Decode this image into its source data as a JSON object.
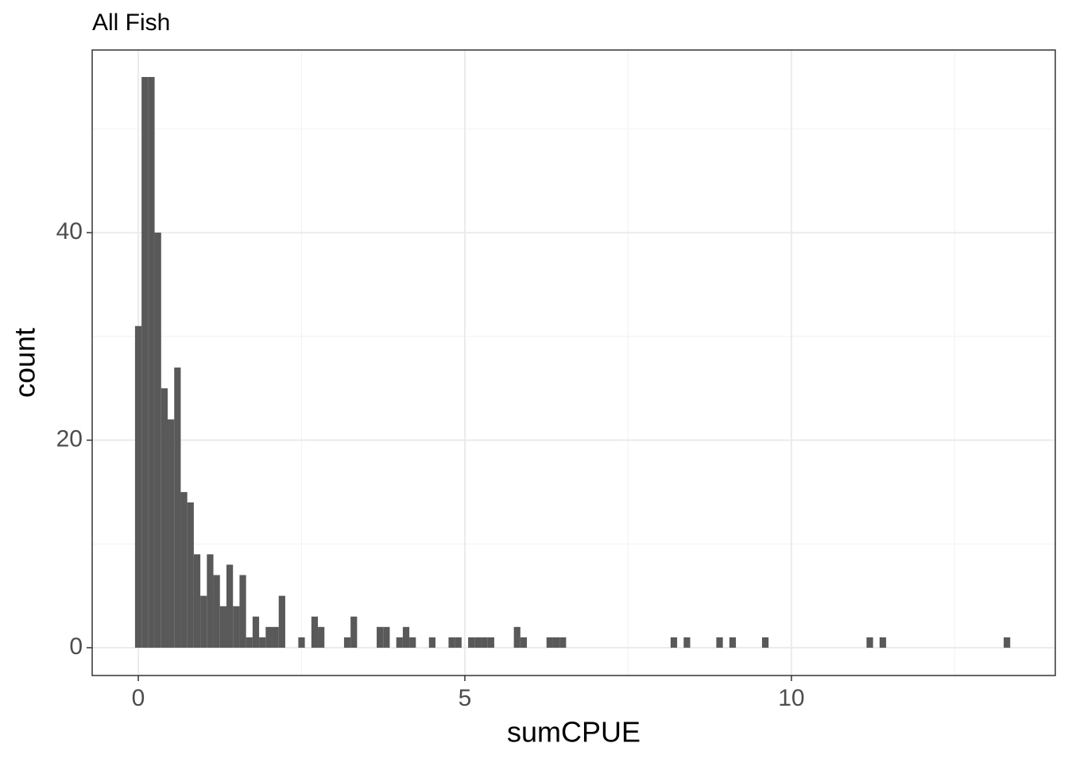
{
  "chart_data": {
    "type": "histogram",
    "title": "All Fish",
    "x_label": "sumCPUE",
    "y_label": "count",
    "color": "#595959",
    "bins": [
      -0.05,
      0.05,
      0.15,
      0.25,
      0.35,
      0.45,
      0.55,
      0.65,
      0.75,
      0.85,
      0.95,
      1.05,
      1.15,
      1.25,
      1.35,
      1.45,
      1.55,
      1.65,
      1.75,
      1.85,
      1.95,
      2.05,
      2.15,
      2.25,
      2.35,
      2.45,
      2.55,
      2.65,
      2.75,
      2.85,
      2.95,
      3.05,
      3.15,
      3.25,
      3.35,
      3.45,
      3.55,
      3.65,
      3.75,
      3.85,
      3.95,
      4.05,
      4.15,
      4.25,
      4.35,
      4.45,
      4.55,
      4.65,
      4.75,
      4.85,
      4.95,
      5.05,
      5.15,
      5.25,
      5.35,
      5.45,
      5.55,
      5.65,
      5.75,
      5.85,
      5.95,
      6.05,
      6.15,
      6.25,
      6.35,
      6.45,
      6.55,
      6.65,
      6.75,
      6.85,
      6.95,
      7.05,
      7.15,
      7.25,
      7.35,
      7.45,
      7.55,
      7.65,
      7.75,
      7.85,
      7.95,
      8.05,
      8.15,
      8.25,
      8.35,
      8.45,
      8.55,
      8.65,
      8.75,
      8.85,
      8.95,
      9.05,
      9.15,
      9.25,
      9.35,
      9.45,
      9.55,
      9.65,
      9.75,
      9.85,
      9.95,
      10.05,
      10.15,
      10.25,
      10.35,
      10.45,
      10.55,
      10.65,
      10.75,
      10.85,
      10.95,
      11.05,
      11.15,
      11.25,
      11.35,
      11.45,
      11.55,
      11.65,
      11.75,
      11.85,
      11.95,
      12.05,
      12.15,
      12.25,
      12.35,
      12.45,
      12.55,
      12.65,
      12.75,
      12.85,
      12.95,
      13.05,
      13.15,
      13.25,
      13.35
    ],
    "values": [
      31,
      55,
      55,
      40,
      25,
      22,
      27,
      15,
      14,
      9,
      5,
      9,
      7,
      4,
      8,
      4,
      7,
      1,
      3,
      1,
      2,
      2,
      5,
      0,
      0,
      1,
      0,
      3,
      2,
      0,
      0,
      0,
      1,
      3,
      0,
      0,
      0,
      2,
      2,
      0,
      1,
      2,
      1,
      0,
      0,
      1,
      0,
      0,
      1,
      1,
      0,
      1,
      1,
      1,
      1,
      0,
      0,
      0,
      2,
      1,
      0,
      0,
      0,
      1,
      1,
      1,
      0,
      0,
      0,
      0,
      0,
      0,
      0,
      0,
      0,
      0,
      0,
      0,
      0,
      0,
      0,
      0,
      1,
      0,
      1,
      0,
      0,
      0,
      0,
      1,
      0,
      1,
      0,
      0,
      0,
      0,
      1,
      0,
      0,
      0,
      0,
      0,
      0,
      0,
      0,
      0,
      0,
      0,
      0,
      0,
      0,
      0,
      1,
      0,
      1,
      0,
      0,
      0,
      0,
      0,
      0,
      0,
      0,
      0,
      0,
      0,
      0,
      0,
      0,
      0,
      0,
      0,
      0,
      1
    ],
    "xlim": [
      -0.706,
      14.04
    ],
    "ylim": [
      -2.68,
      57.6
    ],
    "xticks": [
      0,
      5,
      10
    ],
    "yticks": [
      0,
      20,
      40
    ],
    "x_minor_ticks": [
      2.5,
      7.5,
      12.5
    ],
    "y_minor_ticks": [
      10,
      30,
      50
    ],
    "grid": true
  }
}
